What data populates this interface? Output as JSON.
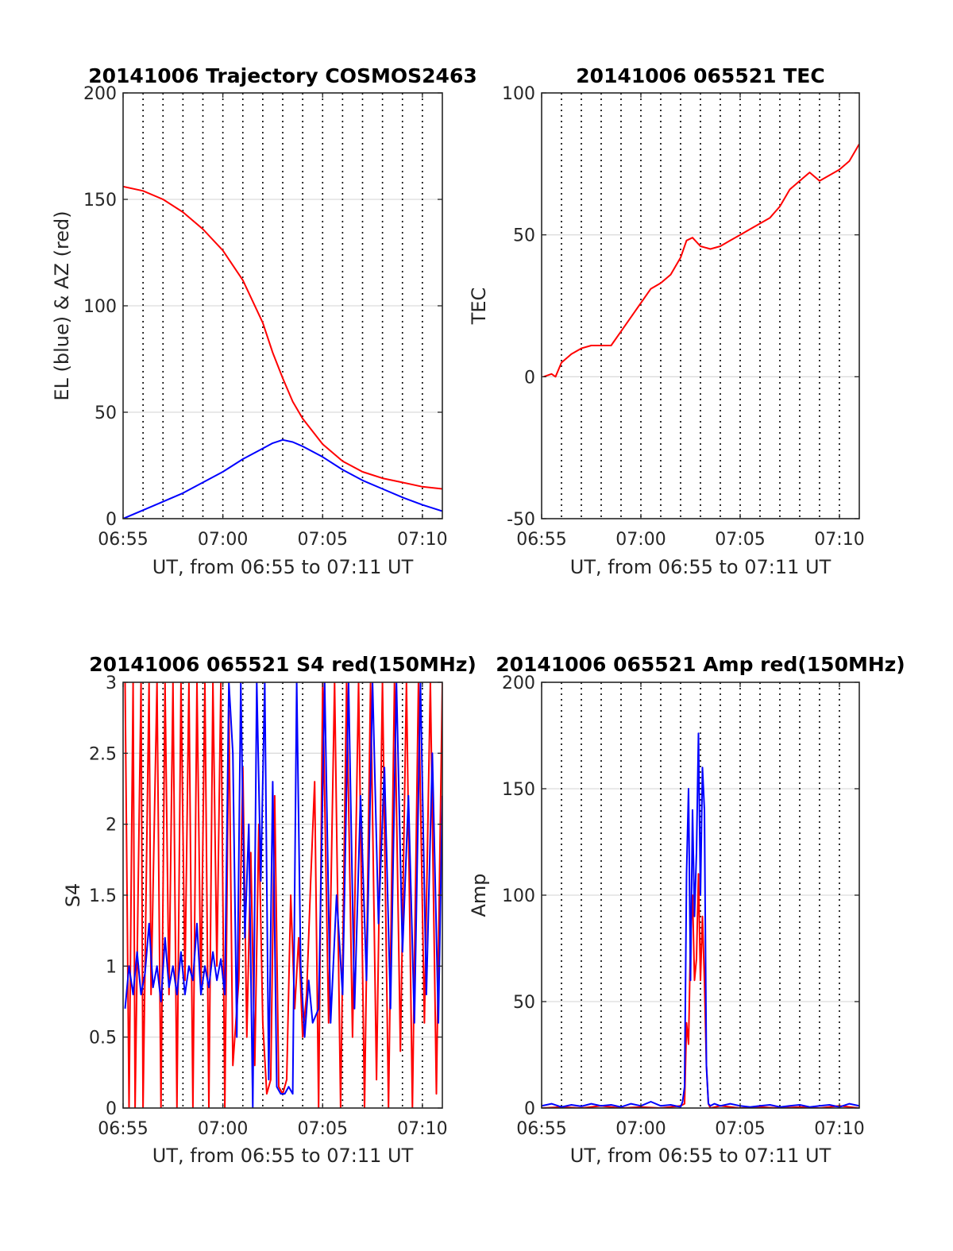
{
  "chart_data": [
    {
      "id": "trajectory",
      "type": "line",
      "title": "20141006 Trajectory COSMOS2463",
      "xlabel": "UT, from 06:55 to 07:11 UT",
      "ylabel": "EL (blue) & AZ (red)",
      "xlim": [
        0,
        16
      ],
      "ylim": [
        0,
        200
      ],
      "xticks": [
        0,
        5,
        10,
        15
      ],
      "xtick_labels": [
        "06:55",
        "07:00",
        "07:05",
        "07:10"
      ],
      "yticks": [
        0,
        50,
        100,
        150,
        200
      ],
      "ytick_labels": [
        "0",
        "50",
        "100",
        "150",
        "200"
      ],
      "minute_grid": true,
      "series": [
        {
          "color": "#ff0000",
          "x": [
            0,
            1,
            2,
            3,
            4,
            5,
            6,
            7,
            7.5,
            8,
            8.5,
            9,
            10,
            11,
            12,
            13,
            14,
            15,
            16
          ],
          "y": [
            156,
            154,
            150,
            144,
            136,
            126,
            112,
            92,
            78,
            66,
            55,
            47,
            35,
            27,
            22,
            19,
            17,
            15,
            14
          ]
        },
        {
          "color": "#0000ff",
          "x": [
            0,
            1,
            2,
            3,
            4,
            5,
            6,
            7,
            7.5,
            8,
            8.5,
            9,
            10,
            11,
            12,
            13,
            14,
            15,
            16
          ],
          "y": [
            0,
            4,
            8,
            12,
            17,
            22,
            28,
            33,
            35.5,
            37,
            36,
            34,
            29,
            23,
            18,
            14,
            10,
            6.5,
            3.5
          ]
        }
      ]
    },
    {
      "id": "tec",
      "type": "line",
      "title": "20141006 065521 TEC",
      "xlabel": "UT, from 06:55 to 07:11 UT",
      "ylabel": "TEC",
      "xlim": [
        0,
        16
      ],
      "ylim": [
        -50,
        100
      ],
      "xticks": [
        0,
        5,
        10,
        15
      ],
      "xtick_labels": [
        "06:55",
        "07:00",
        "07:05",
        "07:10"
      ],
      "yticks": [
        -50,
        0,
        50,
        100
      ],
      "ytick_labels": [
        "-50",
        "0",
        "50",
        "100"
      ],
      "minute_grid": true,
      "series": [
        {
          "color": "#ff0000",
          "x": [
            0.1,
            0.5,
            0.7,
            1,
            1.5,
            2,
            2.5,
            3,
            3.5,
            4,
            4.5,
            5,
            5.5,
            6,
            6.5,
            7,
            7.3,
            7.6,
            8,
            8.5,
            9,
            9.5,
            10,
            10.5,
            11,
            11.5,
            12,
            12.5,
            13,
            13.5,
            14,
            14.5,
            15,
            15.5,
            16
          ],
          "y": [
            0,
            1,
            0,
            5,
            8,
            10,
            11,
            11,
            11,
            16,
            21,
            26,
            31,
            33,
            36,
            42,
            48,
            49,
            46,
            45,
            46,
            48,
            50,
            52,
            54,
            56,
            60,
            66,
            69,
            72,
            69,
            71,
            73,
            76,
            82
          ]
        }
      ]
    },
    {
      "id": "s4",
      "type": "line",
      "title": "20141006 065521 S4 red(150MHz)",
      "xlabel": "UT, from 06:55 to 07:11 UT",
      "ylabel": "S4",
      "xlim": [
        0,
        16
      ],
      "ylim": [
        0,
        3
      ],
      "xticks": [
        0,
        5,
        10,
        15
      ],
      "xtick_labels": [
        "06:55",
        "07:00",
        "07:05",
        "07:10"
      ],
      "yticks": [
        0,
        0.5,
        1,
        1.5,
        2,
        2.5,
        3
      ],
      "ytick_labels": [
        "0",
        "0.5",
        "1",
        "1.5",
        "2",
        "2.5",
        "3"
      ],
      "minute_grid": true,
      "series": [
        {
          "color": "#ff0000",
          "x": [
            0.1,
            0.3,
            0.5,
            0.6,
            0.9,
            1,
            1.3,
            1.4,
            1.7,
            1.9,
            2.1,
            2.3,
            2.5,
            2.7,
            2.9,
            3.1,
            3.3,
            3.5,
            3.7,
            3.9,
            4.1,
            4.3,
            4.5,
            4.7,
            4.9,
            5.1,
            5.3,
            5.5,
            5.8,
            6,
            6.2,
            6.4,
            6.6,
            6.8,
            7,
            7.2,
            7.4,
            7.6,
            7.8,
            8,
            8.2,
            8.4,
            8.6,
            8.8,
            9,
            9.2,
            9.4,
            9.6,
            9.8,
            10,
            10.3,
            10.6,
            10.9,
            11.2,
            11.5,
            11.8,
            12.1,
            12.4,
            12.7,
            13,
            13.3,
            13.6,
            13.9,
            14.2,
            14.5,
            14.8,
            15.1,
            15.4,
            15.7,
            16
          ],
          "y": [
            3,
            0,
            3,
            0,
            3,
            0,
            3,
            0.8,
            3,
            0,
            3,
            0.8,
            3,
            0,
            3,
            0.9,
            3,
            0,
            3,
            0.8,
            3,
            0,
            3,
            1,
            3,
            0,
            2.8,
            0.3,
            0.9,
            2.4,
            0.5,
            1.8,
            0.3,
            2,
            0.6,
            0.1,
            0.2,
            2.2,
            0.15,
            0.1,
            0.2,
            1.5,
            0.7,
            1.2,
            0.5,
            0.8,
            1.6,
            2.3,
            0,
            3,
            0.6,
            3,
            0,
            3,
            0.5,
            3,
            0,
            3,
            0.2,
            3,
            0,
            3,
            0.4,
            3,
            0,
            3,
            0.6,
            3,
            0.1,
            3
          ]
        },
        {
          "color": "#0000ff",
          "x": [
            0.1,
            0.3,
            0.5,
            0.7,
            0.9,
            1.1,
            1.3,
            1.5,
            1.7,
            1.9,
            2.1,
            2.3,
            2.5,
            2.7,
            2.9,
            3.1,
            3.3,
            3.5,
            3.7,
            3.9,
            4.1,
            4.3,
            4.5,
            4.7,
            4.9,
            5.1,
            5.3,
            5.5,
            5.7,
            5.9,
            6.1,
            6.3,
            6.5,
            6.7,
            6.9,
            7.1,
            7.3,
            7.5,
            7.7,
            7.9,
            8.1,
            8.3,
            8.5,
            8.7,
            8.9,
            9.1,
            9.3,
            9.5,
            9.8,
            10.1,
            10.4,
            10.7,
            11,
            11.3,
            11.6,
            11.9,
            12.2,
            12.5,
            12.8,
            13.1,
            13.4,
            13.7,
            14,
            14.3,
            14.6,
            14.9,
            15.2,
            15.5,
            15.8,
            16
          ],
          "y": [
            0.7,
            1,
            0.8,
            1.1,
            0.8,
            0.95,
            1.3,
            0.85,
            1,
            0.75,
            1.2,
            0.85,
            1,
            0.8,
            1.1,
            0.8,
            1,
            0.9,
            1.3,
            0.8,
            1,
            0.85,
            1.1,
            0.9,
            1.05,
            0.8,
            3,
            2.5,
            0.5,
            3,
            1.2,
            2,
            0,
            3,
            1.6,
            3,
            0.2,
            2.3,
            0.15,
            0.1,
            0.1,
            0.15,
            0.1,
            3,
            1,
            0.5,
            0.9,
            0.6,
            0.7,
            3,
            0.6,
            1.5,
            0.8,
            3,
            0.7,
            2.2,
            0.9,
            3,
            1.3,
            2.4,
            0.7,
            3,
            1.1,
            2.2,
            0.6,
            3,
            0.8,
            2.5,
            0.6,
            2.2
          ]
        }
      ]
    },
    {
      "id": "amp",
      "type": "line",
      "title": "20141006 065521 Amp red(150MHz)",
      "xlabel": "UT, from 06:55 to 07:11 UT",
      "ylabel": "Amp",
      "xlim": [
        0,
        16
      ],
      "ylim": [
        0,
        200
      ],
      "xticks": [
        0,
        5,
        10,
        15
      ],
      "xtick_labels": [
        "06:55",
        "07:00",
        "07:05",
        "07:10"
      ],
      "yticks": [
        0,
        50,
        100,
        150,
        200
      ],
      "ytick_labels": [
        "0",
        "50",
        "100",
        "150",
        "200"
      ],
      "minute_grid": true,
      "series": [
        {
          "color": "#ff0000",
          "x": [
            0,
            1,
            2,
            3,
            4,
            5,
            6,
            7,
            7.2,
            7.3,
            7.4,
            7.5,
            7.6,
            7.7,
            7.8,
            7.9,
            8,
            8.1,
            8.2,
            8.3,
            8.4,
            8.5,
            9,
            10,
            11,
            12,
            13,
            14,
            15,
            16
          ],
          "y": [
            0,
            0.5,
            0,
            1,
            0,
            0.5,
            0,
            1,
            2,
            40,
            30,
            80,
            100,
            60,
            70,
            110,
            60,
            90,
            60,
            20,
            2,
            0,
            1,
            0,
            0.5,
            0,
            0.5,
            0,
            1,
            0
          ]
        },
        {
          "color": "#0000ff",
          "x": [
            0,
            0.5,
            1,
            1.5,
            2,
            2.5,
            3,
            3.5,
            4,
            4.5,
            5,
            5.5,
            6,
            6.5,
            7,
            7.1,
            7.2,
            7.3,
            7.4,
            7.5,
            7.6,
            7.7,
            7.8,
            7.9,
            8,
            8.1,
            8.2,
            8.3,
            8.4,
            8.5,
            8.7,
            9,
            9.5,
            10,
            10.5,
            11,
            11.5,
            12,
            12.5,
            13,
            13.5,
            14,
            14.5,
            15,
            15.5,
            16
          ],
          "y": [
            1,
            2,
            0.5,
            1.5,
            0.8,
            2,
            1,
            1.5,
            0.5,
            2,
            1,
            3,
            1,
            1.5,
            0.5,
            3,
            10,
            110,
            150,
            60,
            140,
            90,
            120,
            176,
            100,
            160,
            140,
            20,
            2,
            1,
            2,
            1,
            2,
            1,
            0.5,
            1,
            1.5,
            0.5,
            1,
            1.5,
            0.5,
            1,
            1.5,
            0.5,
            2,
            1
          ]
        }
      ]
    }
  ]
}
